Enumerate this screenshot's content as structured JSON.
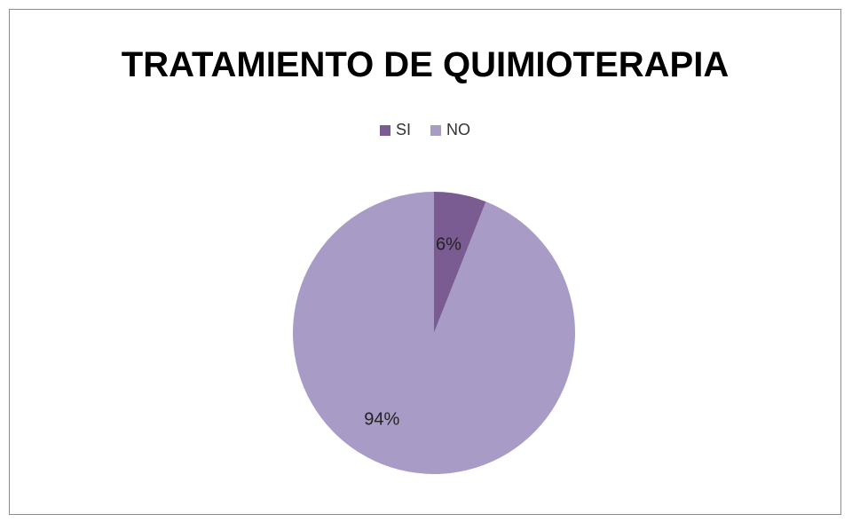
{
  "chart_data": {
    "type": "pie",
    "title": "TRATAMIENTO DE QUIMIOTERAPIA",
    "legend_position": "top",
    "categories": [
      "SI",
      "NO"
    ],
    "values": [
      6,
      94
    ],
    "labels": [
      "6%",
      "94%"
    ],
    "colors": [
      "#7a5c93",
      "#a89bc6"
    ]
  }
}
